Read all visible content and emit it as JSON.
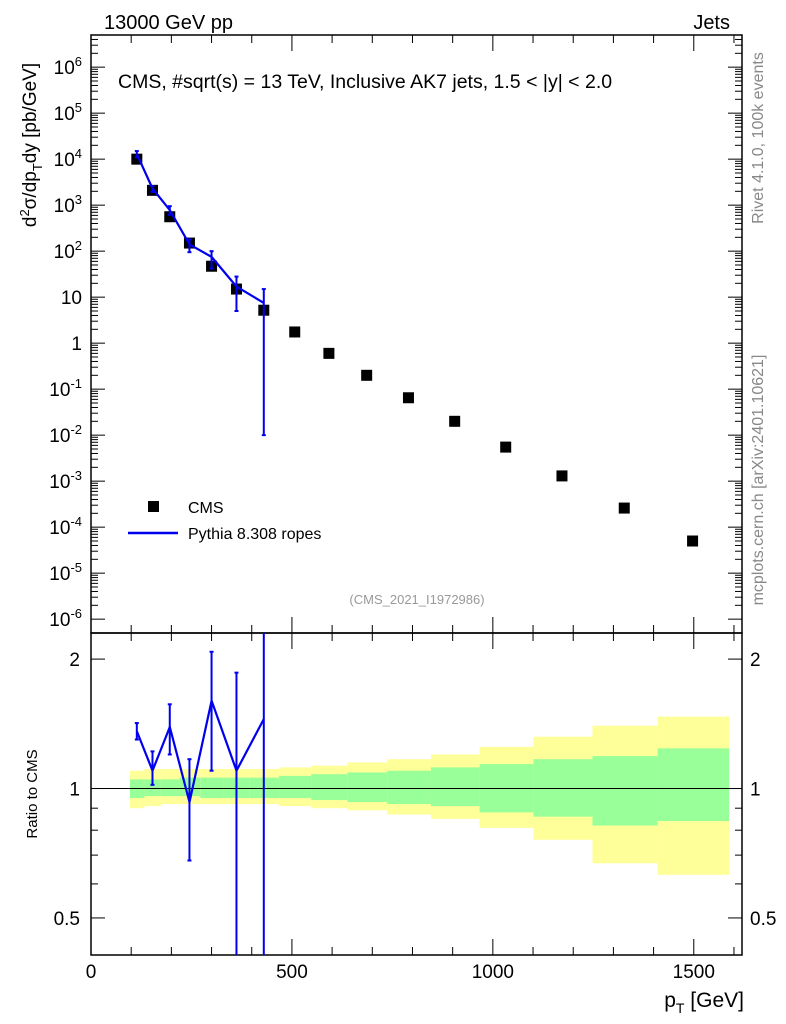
{
  "header": {
    "left": "13000 GeV pp",
    "right": "Jets"
  },
  "side_text": {
    "rivet": "Rivet 4.1.0,  100k events",
    "mcplots": "mcplots.cern.ch [arXiv:2401.10621]"
  },
  "upper": {
    "title": "CMS, #sqrt(s) = 13 TeV, Inclusive AK7 jets, 1.5 < |y| < 2.0",
    "ylabel": "d²σ/dp_T dy [pb/GeV]",
    "analysis": "(CMS_2021_I1972986)",
    "legend": [
      "CMS",
      "Pythia 8.308 ropes"
    ],
    "ytick_labels": [
      {
        "v": 1000000.0,
        "t": "10^6"
      },
      {
        "v": 100000.0,
        "t": "10^5"
      },
      {
        "v": 10000.0,
        "t": "10^4"
      },
      {
        "v": 1000.0,
        "t": "10^3"
      },
      {
        "v": 100,
        "t": "10^2"
      },
      {
        "v": 10,
        "t": "10"
      },
      {
        "v": 1,
        "t": "1"
      },
      {
        "v": 0.1,
        "t": "10^-1"
      },
      {
        "v": 0.01,
        "t": "10^-2"
      },
      {
        "v": 0.001,
        "t": "10^-3"
      },
      {
        "v": 0.0001,
        "t": "10^-4"
      },
      {
        "v": 1e-05,
        "t": "10^-5"
      },
      {
        "v": 1e-06,
        "t": "10^-6"
      }
    ]
  },
  "lower": {
    "ylabel": "Ratio to CMS",
    "ytick_labels": [
      {
        "v": 2,
        "t": "2"
      },
      {
        "v": 1,
        "t": "1"
      },
      {
        "v": 0.5,
        "t": "0.5"
      }
    ]
  },
  "xaxis": {
    "label": "p_T [GeV]",
    "tick_labels": [
      {
        "v": 0,
        "t": "0"
      },
      {
        "v": 500,
        "t": "500"
      },
      {
        "v": 1000,
        "t": "1000"
      },
      {
        "v": 1500,
        "t": "1500"
      }
    ]
  },
  "colors": {
    "data": "#000000",
    "mc": "#0000ee",
    "band_inner": "#99ff99",
    "band_outer": "#ffff99"
  },
  "chart_data": {
    "type": "scatter",
    "x_range": [
      0,
      1620
    ],
    "upper_y_range": [
      5e-07,
      5000000.0
    ],
    "upper_log": true,
    "lower_y_range": [
      0.41,
      2.3
    ],
    "lower_log": true,
    "bin_edges": [
      97,
      133,
      174,
      220,
      272,
      330,
      395,
      468,
      548,
      638,
      737,
      846,
      967,
      1101,
      1248,
      1410,
      1588
    ],
    "series": [
      {
        "name": "CMS",
        "x": [
          114,
          153,
          196,
          245,
          300,
          362,
          430,
          507,
          592,
          686,
          790,
          905,
          1032,
          1172,
          1327,
          1497
        ],
        "values": [
          10000,
          2100,
          560,
          150,
          47,
          15,
          5.2,
          1.75,
          0.6,
          0.2,
          0.065,
          0.02,
          0.0055,
          0.0013,
          0.00026,
          5e-05
        ]
      },
      {
        "name": "Pythia 8.308 ropes",
        "x": [
          114,
          153,
          196,
          245,
          300,
          362,
          430
        ],
        "values": [
          13000,
          2300,
          780,
          140,
          75,
          17,
          7.5
        ],
        "err_low": [
          11000,
          1950,
          620,
          95,
          42,
          5,
          0.01
        ],
        "err_high": [
          15000,
          2600,
          950,
          180,
          100,
          28,
          15
        ]
      }
    ],
    "ratio": {
      "x": [
        114,
        153,
        196,
        245,
        300,
        362,
        430
      ],
      "values": [
        1.36,
        1.1,
        1.39,
        0.93,
        1.6,
        1.1,
        1.45
      ],
      "err_low": [
        1.3,
        1.02,
        1.2,
        0.68,
        1.1,
        0.3,
        0.3
      ],
      "err_high": [
        1.42,
        1.22,
        1.57,
        1.17,
        2.08,
        1.86,
        4.0
      ]
    },
    "uncertainty_band": {
      "inner_low": [
        0.95,
        0.96,
        0.96,
        0.96,
        0.95,
        0.95,
        0.95,
        0.95,
        0.94,
        0.93,
        0.92,
        0.91,
        0.88,
        0.86,
        0.82,
        0.84
      ],
      "inner_high": [
        1.05,
        1.05,
        1.05,
        1.06,
        1.06,
        1.06,
        1.06,
        1.07,
        1.08,
        1.09,
        1.1,
        1.12,
        1.14,
        1.17,
        1.19,
        1.24
      ],
      "outer_low": [
        0.9,
        0.91,
        0.92,
        0.92,
        0.92,
        0.92,
        0.92,
        0.91,
        0.9,
        0.89,
        0.87,
        0.85,
        0.81,
        0.76,
        0.67,
        0.63
      ],
      "outer_high": [
        1.1,
        1.11,
        1.11,
        1.11,
        1.11,
        1.11,
        1.11,
        1.12,
        1.13,
        1.15,
        1.17,
        1.2,
        1.25,
        1.32,
        1.4,
        1.47
      ]
    }
  }
}
